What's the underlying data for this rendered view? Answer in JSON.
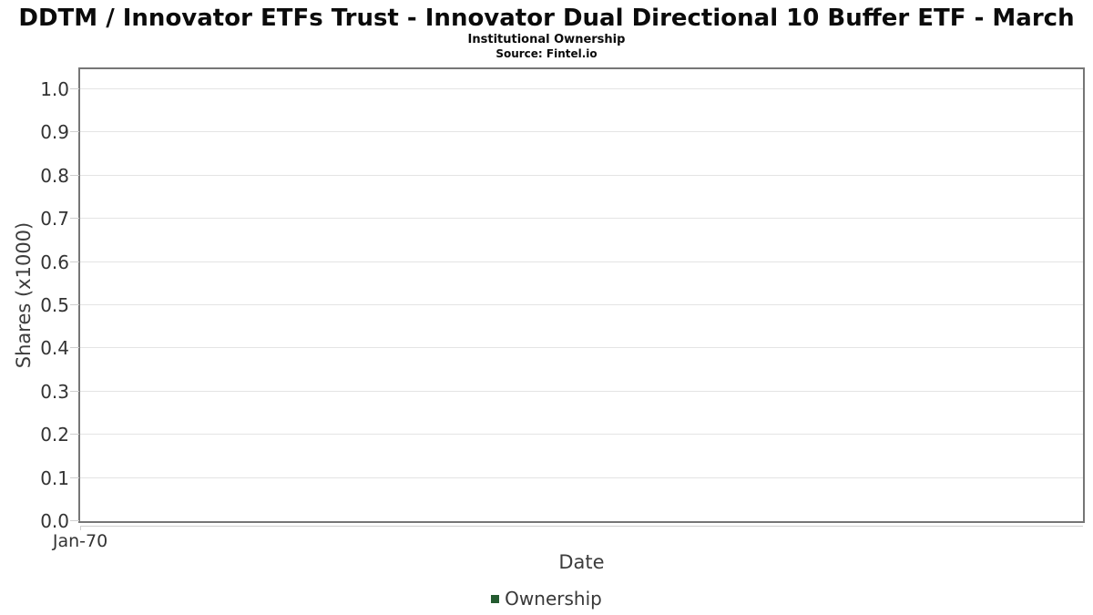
{
  "chart_data": {
    "type": "bar",
    "title": "DDTM / Innovator ETFs Trust - Innovator Dual Directional 10 Buffer ETF - March",
    "subtitle": "Institutional Ownership",
    "source": "Source: Fintel.io",
    "xlabel": "Date",
    "ylabel": "Shares (x1000)",
    "ylim": [
      0,
      1.046
    ],
    "yticks": [
      "0.0",
      "0.1",
      "0.2",
      "0.3",
      "0.4",
      "0.5",
      "0.6",
      "0.7",
      "0.8",
      "0.9",
      "1.0"
    ],
    "xticks": [
      "Jan-70"
    ],
    "grid": true,
    "legend_position": "bottom",
    "series": [
      {
        "name": "Ownership",
        "color": "#245b30",
        "x": [],
        "values": []
      }
    ]
  },
  "colors": {
    "background": "#ffffff",
    "plot_border": "#767676",
    "gridline": "#e4e4e4",
    "axis_tick": "#cfcfcf",
    "series_green": "#245b30",
    "text_dark": "#0b0b0b",
    "tick_label": "#333333",
    "axis_title": "#3c3c3c"
  }
}
